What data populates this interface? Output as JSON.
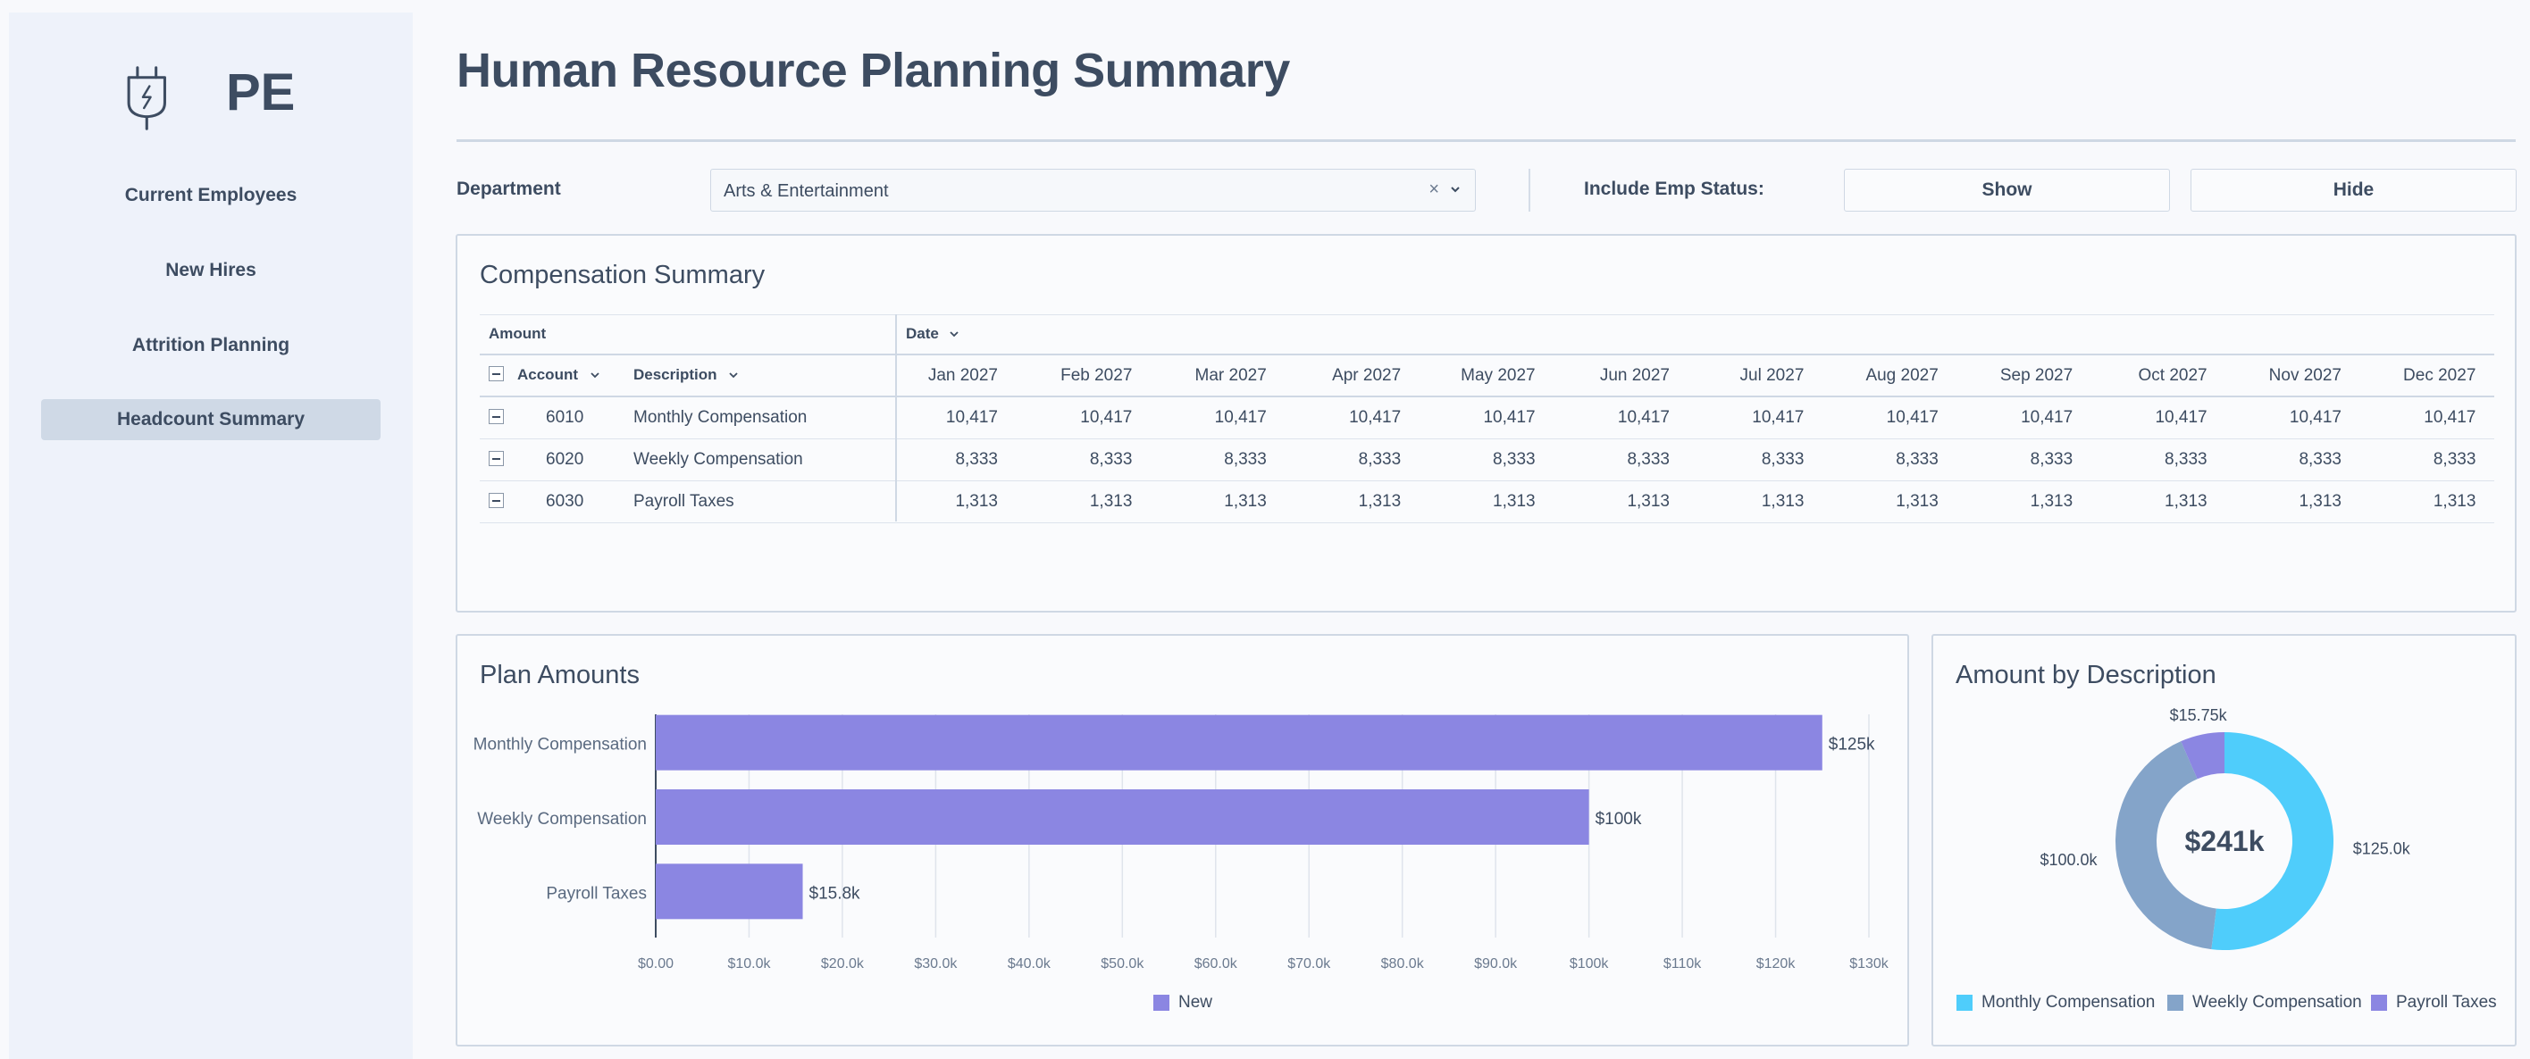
{
  "app": {
    "logo_text": "PE",
    "title": "Human Resource Planning Summary"
  },
  "sidebar": {
    "items": [
      {
        "label": "Current Employees",
        "active": false
      },
      {
        "label": "New Hires",
        "active": false
      },
      {
        "label": "Attrition Planning",
        "active": false
      },
      {
        "label": "Headcount Summary",
        "active": true
      }
    ]
  },
  "filters": {
    "department_label": "Department",
    "department_value": "Arts & Entertainment",
    "clear_glyph": "×",
    "chevron_glyph": "⌄",
    "emp_status_label": "Include Emp Status:",
    "show_label": "Show",
    "hide_label": "Hide"
  },
  "compensation": {
    "title": "Compensation Summary",
    "amount_header": "Amount",
    "date_header": "Date",
    "account_header": "Account",
    "description_header": "Description",
    "months": [
      "Jan 2027",
      "Feb 2027",
      "Mar 2027",
      "Apr 2027",
      "May 2027",
      "Jun 2027",
      "Jul 2027",
      "Aug 2027",
      "Sep 2027",
      "Oct 2027",
      "Nov 2027",
      "Dec 2027"
    ],
    "rows": [
      {
        "account": "6010",
        "description": "Monthly Compensation",
        "values": [
          "10,417",
          "10,417",
          "10,417",
          "10,417",
          "10,417",
          "10,417",
          "10,417",
          "10,417",
          "10,417",
          "10,417",
          "10,417",
          "10,417"
        ]
      },
      {
        "account": "6020",
        "description": "Weekly Compensation",
        "values": [
          "8,333",
          "8,333",
          "8,333",
          "8,333",
          "8,333",
          "8,333",
          "8,333",
          "8,333",
          "8,333",
          "8,333",
          "8,333",
          "8,333"
        ]
      },
      {
        "account": "6030",
        "description": "Payroll Taxes",
        "values": [
          "1,313",
          "1,313",
          "1,313",
          "1,313",
          "1,313",
          "1,313",
          "1,313",
          "1,313",
          "1,313",
          "1,313",
          "1,313",
          "1,313"
        ]
      }
    ]
  },
  "chart_data": [
    {
      "type": "bar",
      "orientation": "horizontal",
      "title": "Plan Amounts",
      "categories": [
        "Monthly Compensation",
        "Weekly Compensation",
        "Payroll Taxes"
      ],
      "series": [
        {
          "name": "New",
          "values": [
            125000,
            100000,
            15750
          ],
          "color": "#8b86e2"
        }
      ],
      "data_labels": [
        "$125k",
        "$100k",
        "$15.8k"
      ],
      "xlim": [
        0,
        130000
      ],
      "x_ticks": [
        0,
        10000,
        20000,
        30000,
        40000,
        50000,
        60000,
        70000,
        80000,
        90000,
        100000,
        110000,
        120000,
        130000
      ],
      "x_tick_labels": [
        "$0.00",
        "$10.0k",
        "$20.0k",
        "$30.0k",
        "$40.0k",
        "$50.0k",
        "$60.0k",
        "$70.0k",
        "$80.0k",
        "$90.0k",
        "$100k",
        "$110k",
        "$120k",
        "$130k"
      ],
      "grid": true,
      "legend": "bottom"
    },
    {
      "type": "pie",
      "donut": true,
      "title": "Amount by Description",
      "center_label": "$241k",
      "categories": [
        "Monthly Compensation",
        "Weekly Compensation",
        "Payroll Taxes"
      ],
      "values": [
        125000,
        100000,
        15750
      ],
      "data_labels": [
        "$125.0k",
        "$100.0k",
        "$15.75k"
      ],
      "colors": [
        "#4fcdfb",
        "#84a4c9",
        "#8b86e2"
      ],
      "legend": "bottom"
    }
  ]
}
